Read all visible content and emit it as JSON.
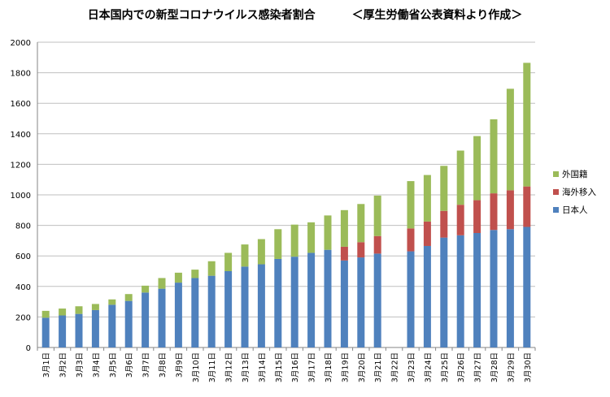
{
  "chart_data": {
    "type": "bar",
    "stacked": true,
    "title": "日本国内での新型コロナウイルス感染者割合",
    "subtitle": "＜厚生労働省公表資料より作成＞",
    "xlabel": "",
    "ylabel": "",
    "ylim": [
      0,
      2000
    ],
    "yticks": [
      0,
      200,
      400,
      600,
      800,
      1000,
      1200,
      1400,
      1600,
      1800,
      2000
    ],
    "grid": true,
    "legend_position": "right",
    "categories": [
      "3月1日",
      "3月2日",
      "3月3日",
      "3月4日",
      "3月5日",
      "3月6日",
      "3月7日",
      "3月8日",
      "3月9日",
      "3月10日",
      "3月11日",
      "3月12日",
      "3月13日",
      "3月14日",
      "3月15日",
      "3月16日",
      "3月17日",
      "3月18日",
      "3月19日",
      "3月20日",
      "3月21日",
      "3月22日",
      "3月23日",
      "3月24日",
      "3月25日",
      "3月26日",
      "3月27日",
      "3月28日",
      "3月29日",
      "3月30日"
    ],
    "series": [
      {
        "name": "日本人",
        "color": "#4f81bd",
        "values": [
          195,
          210,
          220,
          245,
          280,
          305,
          360,
          385,
          425,
          455,
          470,
          500,
          530,
          545,
          580,
          595,
          620,
          640,
          570,
          590,
          615,
          null,
          630,
          665,
          720,
          735,
          750,
          770,
          775,
          790
        ]
      },
      {
        "name": "海外移入",
        "color": "#c0504d",
        "values": [
          0,
          0,
          0,
          0,
          0,
          0,
          0,
          0,
          0,
          0,
          0,
          0,
          0,
          0,
          0,
          0,
          0,
          0,
          90,
          100,
          115,
          null,
          150,
          160,
          175,
          200,
          215,
          240,
          255,
          265
        ]
      },
      {
        "name": "外国籍",
        "color": "#9bbb59",
        "values": [
          45,
          45,
          50,
          40,
          35,
          45,
          45,
          70,
          65,
          55,
          95,
          120,
          145,
          165,
          195,
          210,
          200,
          225,
          240,
          250,
          265,
          null,
          310,
          305,
          295,
          355,
          420,
          485,
          665,
          810
        ]
      }
    ]
  }
}
